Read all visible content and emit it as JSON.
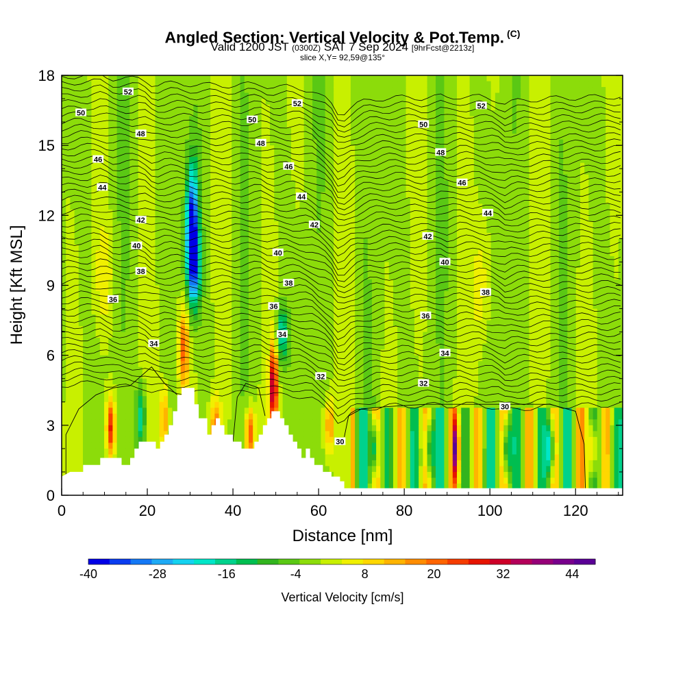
{
  "title": "Angled Section: Vertical Velocity & Pot.Temp.",
  "title_tag": "(C)",
  "subtitle_valid": "Valid 1200 JST",
  "subtitle_utc": "(0300Z)",
  "subtitle_date": "SAT 7 Sep 2024",
  "subtitle_fcst": "[9hrFcst@2213z]",
  "slice_text": "slice X,Y= 92,59@135°",
  "chart_data": {
    "type": "heatmap",
    "xlabel": "Distance [nm]",
    "ylabel": "Height [Kft MSL]",
    "xlim": [
      0,
      131
    ],
    "ylim": [
      0,
      18
    ],
    "xticks": [
      0,
      20,
      40,
      60,
      80,
      100,
      120
    ],
    "yticks": [
      0,
      3,
      6,
      9,
      12,
      15,
      18
    ],
    "fill_variable": "Vertical Velocity [cm/s]",
    "contour_variable": "Potential temperature",
    "colorbar": {
      "label": "Vertical Velocity [cm/s]",
      "min": -40,
      "max": 48,
      "step": 4,
      "tick_labels": [
        -40,
        -28,
        -16,
        -4,
        8,
        20,
        32,
        44
      ],
      "colors": [
        "#0000e6",
        "#0a3cf0",
        "#1478f5",
        "#1eaaf5",
        "#14d2f0",
        "#00e6c8",
        "#00d28c",
        "#00be50",
        "#32b41e",
        "#5ac814",
        "#8cdc0a",
        "#c8f000",
        "#f0f000",
        "#ffd700",
        "#ffb400",
        "#ff8c00",
        "#ff6400",
        "#f53c00",
        "#e61400",
        "#cd0028",
        "#b4005a",
        "#960078",
        "#78008c",
        "#5a0096"
      ]
    },
    "theta_labels": [
      {
        "x": 15.5,
        "y": 17.3,
        "v": 52
      },
      {
        "x": 55,
        "y": 16.8,
        "v": 52
      },
      {
        "x": 98,
        "y": 16.7,
        "v": 52
      },
      {
        "x": 4.5,
        "y": 16.4,
        "v": 50
      },
      {
        "x": 44.5,
        "y": 16.1,
        "v": 50
      },
      {
        "x": 84.5,
        "y": 15.9,
        "v": 50
      },
      {
        "x": 18.5,
        "y": 15.5,
        "v": 48
      },
      {
        "x": 46.5,
        "y": 15.1,
        "v": 48
      },
      {
        "x": 88.5,
        "y": 14.7,
        "v": 48
      },
      {
        "x": 8.5,
        "y": 14.4,
        "v": 46
      },
      {
        "x": 53,
        "y": 14.1,
        "v": 46
      },
      {
        "x": 93.5,
        "y": 13.4,
        "v": 46
      },
      {
        "x": 9.5,
        "y": 13.2,
        "v": 44
      },
      {
        "x": 56,
        "y": 12.8,
        "v": 44
      },
      {
        "x": 99.5,
        "y": 12.1,
        "v": 44
      },
      {
        "x": 18.5,
        "y": 11.8,
        "v": 42
      },
      {
        "x": 59,
        "y": 11.6,
        "v": 42
      },
      {
        "x": 85.5,
        "y": 11.1,
        "v": 42
      },
      {
        "x": 17.5,
        "y": 10.7,
        "v": 40
      },
      {
        "x": 50.5,
        "y": 10.4,
        "v": 40
      },
      {
        "x": 89.5,
        "y": 10.0,
        "v": 40
      },
      {
        "x": 18.5,
        "y": 9.6,
        "v": 38
      },
      {
        "x": 53,
        "y": 9.1,
        "v": 38
      },
      {
        "x": 99,
        "y": 8.7,
        "v": 38
      },
      {
        "x": 12,
        "y": 8.4,
        "v": 36
      },
      {
        "x": 49.5,
        "y": 8.1,
        "v": 36
      },
      {
        "x": 85,
        "y": 7.7,
        "v": 36
      },
      {
        "x": 21.5,
        "y": 6.5,
        "v": 34
      },
      {
        "x": 51.5,
        "y": 6.9,
        "v": 34
      },
      {
        "x": 89.5,
        "y": 6.1,
        "v": 34
      },
      {
        "x": 60.5,
        "y": 5.1,
        "v": 32
      },
      {
        "x": 84.5,
        "y": 4.8,
        "v": 32
      },
      {
        "x": 65,
        "y": 2.3,
        "v": 30
      },
      {
        "x": 103.5,
        "y": 3.8,
        "v": 30
      }
    ],
    "terrain": [
      [
        0,
        0.8
      ],
      [
        2,
        1.0
      ],
      [
        5,
        1.0
      ],
      [
        5,
        1.3
      ],
      [
        9,
        1.3
      ],
      [
        9,
        1.6
      ],
      [
        14,
        1.6
      ],
      [
        14,
        1.3
      ],
      [
        16,
        1.3
      ],
      [
        16,
        1.6
      ],
      [
        17,
        1.6
      ],
      [
        17,
        2.0
      ],
      [
        18,
        2.0
      ],
      [
        18,
        2.3
      ],
      [
        22,
        2.3
      ],
      [
        22,
        2.0
      ],
      [
        23,
        2.0
      ],
      [
        23,
        2.3
      ],
      [
        24,
        2.3
      ],
      [
        24,
        2.6
      ],
      [
        25,
        2.6
      ],
      [
        25,
        3.0
      ],
      [
        26,
        3.0
      ],
      [
        26,
        3.6
      ],
      [
        27,
        3.6
      ],
      [
        27,
        4.3
      ],
      [
        28,
        4.3
      ],
      [
        28,
        4.6
      ],
      [
        31,
        4.6
      ],
      [
        31,
        3.9
      ],
      [
        32,
        3.9
      ],
      [
        32,
        3.3
      ],
      [
        34,
        3.3
      ],
      [
        34,
        2.6
      ],
      [
        35,
        2.6
      ],
      [
        35,
        3.0
      ],
      [
        36,
        3.0
      ],
      [
        36,
        3.3
      ],
      [
        37,
        3.3
      ],
      [
        37,
        3.0
      ],
      [
        38,
        3.0
      ],
      [
        38,
        2.6
      ],
      [
        40,
        2.6
      ],
      [
        40,
        2.3
      ],
      [
        42,
        2.3
      ],
      [
        42,
        2.0
      ],
      [
        45,
        2.0
      ],
      [
        45,
        2.3
      ],
      [
        46,
        2.3
      ],
      [
        46,
        2.6
      ],
      [
        47,
        2.6
      ],
      [
        47,
        3.0
      ],
      [
        48,
        3.0
      ],
      [
        48,
        3.3
      ],
      [
        49,
        3.3
      ],
      [
        49,
        3.6
      ],
      [
        51,
        3.6
      ],
      [
        51,
        3.3
      ],
      [
        52,
        3.3
      ],
      [
        52,
        3.0
      ],
      [
        53,
        3.0
      ],
      [
        53,
        2.6
      ],
      [
        54,
        2.6
      ],
      [
        54,
        2.3
      ],
      [
        55,
        2.3
      ],
      [
        55,
        2.0
      ],
      [
        56,
        2.0
      ],
      [
        56,
        1.6
      ],
      [
        57,
        1.6
      ],
      [
        57,
        2.0
      ],
      [
        58,
        2.0
      ],
      [
        58,
        1.6
      ],
      [
        59,
        1.6
      ],
      [
        59,
        1.3
      ],
      [
        61,
        1.3
      ],
      [
        61,
        1.0
      ],
      [
        63,
        1.0
      ],
      [
        63,
        0.8
      ],
      [
        65,
        0.8
      ],
      [
        65,
        0.6
      ],
      [
        66,
        0.6
      ],
      [
        66,
        0.3
      ],
      [
        131,
        0.3
      ]
    ]
  }
}
